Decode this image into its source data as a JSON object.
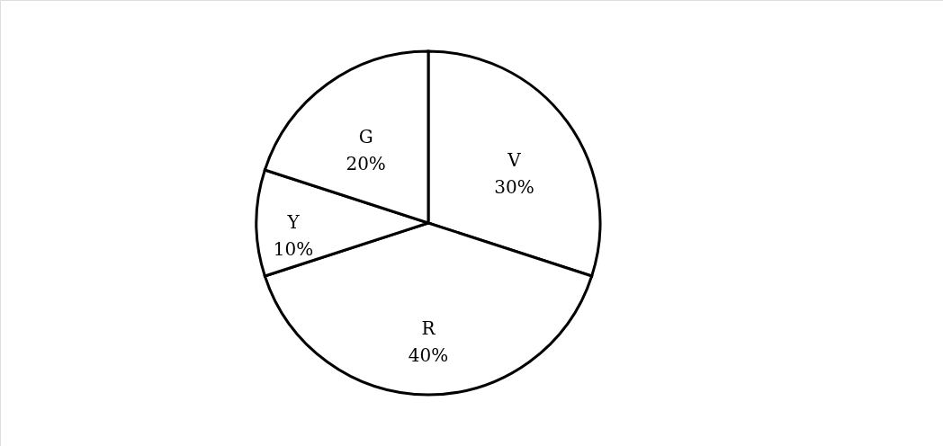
{
  "chart_data": {
    "type": "pie",
    "categories": [
      "V",
      "R",
      "Y",
      "G"
    ],
    "values": [
      30,
      40,
      10,
      20
    ],
    "value_labels": [
      "30%",
      "40%",
      "10%",
      "20%"
    ],
    "colors": [
      "#ffffff",
      "#ffffff",
      "#ffffff",
      "#ffffff"
    ]
  }
}
